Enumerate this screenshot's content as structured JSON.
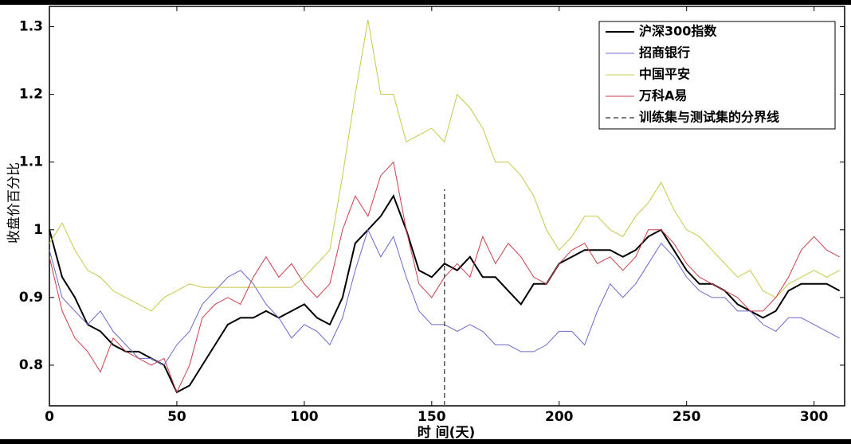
{
  "chart_data": {
    "type": "line",
    "xlabel": "时 间(天)",
    "ylabel": "收盘价百分比",
    "x": [
      0,
      5,
      10,
      15,
      20,
      25,
      30,
      35,
      40,
      45,
      50,
      55,
      60,
      65,
      70,
      75,
      80,
      85,
      90,
      95,
      100,
      105,
      110,
      115,
      120,
      125,
      130,
      135,
      140,
      145,
      150,
      155,
      160,
      165,
      170,
      175,
      180,
      185,
      190,
      195,
      200,
      205,
      210,
      215,
      220,
      225,
      230,
      235,
      240,
      245,
      250,
      255,
      260,
      265,
      270,
      275,
      280,
      285,
      290,
      295,
      300,
      305,
      310
    ],
    "series": [
      {
        "name": "沪深300指数",
        "color": "#000000",
        "width": 2,
        "values": [
          1.0,
          0.93,
          0.9,
          0.86,
          0.85,
          0.83,
          0.82,
          0.82,
          0.81,
          0.8,
          0.76,
          0.77,
          0.8,
          0.83,
          0.86,
          0.87,
          0.87,
          0.88,
          0.87,
          0.88,
          0.89,
          0.87,
          0.86,
          0.9,
          0.98,
          1.0,
          1.02,
          1.05,
          1.0,
          0.94,
          0.93,
          0.95,
          0.94,
          0.96,
          0.93,
          0.93,
          0.91,
          0.89,
          0.92,
          0.92,
          0.95,
          0.96,
          0.97,
          0.97,
          0.97,
          0.96,
          0.97,
          0.99,
          1.0,
          0.97,
          0.94,
          0.92,
          0.92,
          0.91,
          0.89,
          0.88,
          0.87,
          0.88,
          0.91,
          0.92,
          0.92,
          0.92,
          0.91
        ]
      },
      {
        "name": "招商银行",
        "color": "#6a6acc",
        "width": 1,
        "values": [
          0.97,
          0.9,
          0.88,
          0.86,
          0.88,
          0.85,
          0.83,
          0.81,
          0.81,
          0.8,
          0.83,
          0.85,
          0.89,
          0.91,
          0.93,
          0.94,
          0.92,
          0.89,
          0.87,
          0.84,
          0.86,
          0.85,
          0.83,
          0.87,
          0.94,
          1.0,
          0.96,
          0.99,
          0.93,
          0.88,
          0.86,
          0.86,
          0.85,
          0.86,
          0.85,
          0.83,
          0.83,
          0.82,
          0.82,
          0.83,
          0.85,
          0.85,
          0.83,
          0.88,
          0.92,
          0.9,
          0.92,
          0.95,
          0.98,
          0.96,
          0.93,
          0.91,
          0.9,
          0.9,
          0.88,
          0.88,
          0.86,
          0.85,
          0.87,
          0.87,
          0.86,
          0.85,
          0.84
        ]
      },
      {
        "name": "中国平安",
        "color": "#c8c848",
        "width": 1,
        "values": [
          0.98,
          1.01,
          0.97,
          0.94,
          0.93,
          0.91,
          0.9,
          0.89,
          0.88,
          0.9,
          0.91,
          0.92,
          0.915,
          0.915,
          0.915,
          0.915,
          0.915,
          0.915,
          0.915,
          0.915,
          0.93,
          0.95,
          0.97,
          1.08,
          1.2,
          1.31,
          1.2,
          1.2,
          1.13,
          1.14,
          1.15,
          1.13,
          1.2,
          1.18,
          1.15,
          1.1,
          1.1,
          1.08,
          1.05,
          1.0,
          0.97,
          0.99,
          1.02,
          1.02,
          1.0,
          0.99,
          1.02,
          1.04,
          1.07,
          1.03,
          1.0,
          0.99,
          0.97,
          0.95,
          0.93,
          0.94,
          0.91,
          0.9,
          0.92,
          0.93,
          0.94,
          0.93,
          0.94
        ]
      },
      {
        "name": "万科A易",
        "color": "#c8404c",
        "width": 1,
        "values": [
          0.96,
          0.88,
          0.84,
          0.82,
          0.79,
          0.84,
          0.82,
          0.81,
          0.8,
          0.81,
          0.76,
          0.8,
          0.87,
          0.89,
          0.9,
          0.89,
          0.93,
          0.96,
          0.93,
          0.95,
          0.92,
          0.9,
          0.92,
          1.0,
          1.05,
          1.02,
          1.08,
          1.1,
          1.0,
          0.92,
          0.9,
          0.93,
          0.95,
          0.93,
          0.99,
          0.95,
          0.98,
          0.96,
          0.93,
          0.92,
          0.95,
          0.97,
          0.98,
          0.95,
          0.96,
          0.94,
          0.96,
          1.0,
          1.0,
          0.98,
          0.95,
          0.93,
          0.92,
          0.91,
          0.9,
          0.88,
          0.88,
          0.9,
          0.93,
          0.97,
          0.99,
          0.97,
          0.96
        ]
      },
      {
        "name": "训练集与测试集的分界线",
        "color": "#555555",
        "width": 1.5,
        "style": "dashed",
        "x": [
          155,
          155
        ],
        "values": [
          0.74,
          1.06
        ]
      }
    ],
    "xlim": [
      0,
      312
    ],
    "ylim": [
      0.74,
      1.33
    ],
    "xticks": [
      0,
      50,
      100,
      150,
      200,
      250,
      300
    ],
    "yticks": [
      0.8,
      0.9,
      1,
      1.1,
      1.2,
      1.3
    ],
    "legend": "upper right"
  }
}
